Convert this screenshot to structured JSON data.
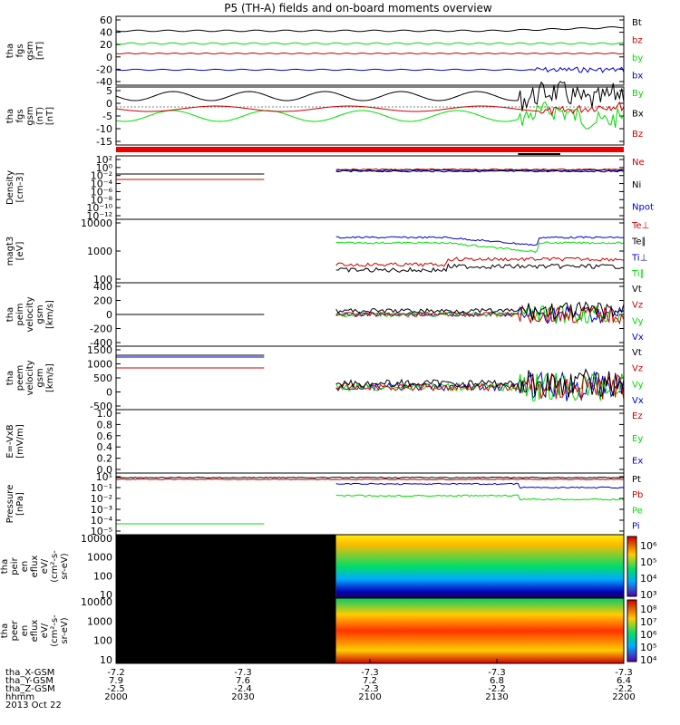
{
  "title": "P5 (TH-A) fields and on-board moments overview",
  "panels": [
    {
      "id": "p1",
      "ylabel": [
        "tha",
        "fgs",
        "gsm",
        "[nT]"
      ],
      "yticks": [
        "60",
        "40",
        "20",
        "0",
        "-20",
        "-40"
      ],
      "legend": [
        {
          "label": "Bt",
          "color": "#000000"
        },
        {
          "label": "bz",
          "color": "#cc0000"
        },
        {
          "label": "by",
          "color": "#00dd00"
        },
        {
          "label": "bx",
          "color": "#0000cc"
        }
      ]
    },
    {
      "id": "p2",
      "ylabel": [
        "tha",
        "fgs",
        "gsm",
        "(nT)",
        "[nT]"
      ],
      "yticks": [
        "5",
        "0",
        "-5",
        "-10",
        "-15"
      ],
      "legend": [
        {
          "label": "By",
          "color": "#00dd00"
        },
        {
          "label": "Bx",
          "color": "#000000"
        },
        {
          "label": "Bz",
          "color": "#cc0000"
        }
      ]
    },
    {
      "id": "p4",
      "ylabel": [
        "Density",
        "[cm-3]"
      ],
      "yticks": [
        "10²",
        "10⁰",
        "10⁻²",
        "10⁻⁴",
        "10⁻⁶",
        "10⁻⁸",
        "10⁻¹⁰",
        "10⁻¹²"
      ],
      "legend": [
        {
          "label": "Ne",
          "color": "#cc0000"
        },
        {
          "label": "Ni",
          "color": "#000000"
        },
        {
          "label": "Npot",
          "color": "#0000cc"
        }
      ]
    },
    {
      "id": "p5",
      "ylabel": [
        "magt3",
        "[eV]"
      ],
      "yticks": [
        "10000",
        "1000",
        "100"
      ],
      "legend": [
        {
          "label": "Te⊥",
          "color": "#cc0000"
        },
        {
          "label": "Te∥",
          "color": "#000000"
        },
        {
          "label": "Ti⊥",
          "color": "#0000cc"
        },
        {
          "label": "Ti∥",
          "color": "#00dd00"
        }
      ]
    },
    {
      "id": "p6",
      "ylabel": [
        "tha",
        "peim",
        "velocity",
        "gsm",
        "[km/s]"
      ],
      "yticks": [
        "400",
        "200",
        "0",
        "-200",
        "-400"
      ],
      "legend": [
        {
          "label": "Vt",
          "color": "#000000"
        },
        {
          "label": "Vz",
          "color": "#cc0000"
        },
        {
          "label": "Vy",
          "color": "#00dd00"
        },
        {
          "label": "Vx",
          "color": "#0000cc"
        }
      ]
    },
    {
      "id": "p7",
      "ylabel": [
        "tha",
        "peem",
        "velocity",
        "gsm",
        "[km/s]"
      ],
      "yticks": [
        "1500",
        "1000",
        "500",
        "0",
        "-500"
      ],
      "legend": [
        {
          "label": "Vt",
          "color": "#000000"
        },
        {
          "label": "Vz",
          "color": "#cc0000"
        },
        {
          "label": "Vy",
          "color": "#00dd00"
        },
        {
          "label": "Vx",
          "color": "#0000cc"
        }
      ]
    },
    {
      "id": "p8",
      "ylabel": [
        "E=-VxB",
        "[mV/m]"
      ],
      "yticks": [
        "1.0",
        "0.8",
        "0.6",
        "0.4",
        "0.2",
        "0.0"
      ],
      "legend": [
        {
          "label": "Ez",
          "color": "#cc0000"
        },
        {
          "label": "Ey",
          "color": "#00dd00"
        },
        {
          "label": "Ex",
          "color": "#0000cc"
        }
      ]
    },
    {
      "id": "p9",
      "ylabel": [
        "Pressure",
        "[nPa]"
      ],
      "yticks": [
        "10¹",
        "10⁻¹",
        "10⁻²",
        "10⁻³",
        "10⁻⁴",
        "10⁻⁵"
      ],
      "legend": [
        {
          "label": "Pt",
          "color": "#000000"
        },
        {
          "label": "Pb",
          "color": "#cc0000"
        },
        {
          "label": "Pe",
          "color": "#00dd00"
        },
        {
          "label": "Pi",
          "color": "#0000cc"
        }
      ]
    },
    {
      "id": "p10",
      "ylabel": [
        "tha",
        "peir",
        "en",
        "eflux",
        "eV/",
        "(cm²-s-",
        "sr-eV)"
      ],
      "yticks": [
        "10000",
        "1000",
        "100",
        "10"
      ],
      "colorbar": [
        "10⁶",
        "10⁵",
        "10⁴",
        "10³"
      ]
    },
    {
      "id": "p11",
      "ylabel": [
        "tha",
        "peer",
        "en",
        "eflux",
        "eV/",
        "(cm²-s-",
        "sr-eV)"
      ],
      "yticks": [
        "10000",
        "1000",
        "100",
        "10"
      ],
      "colorbar": [
        "10⁸",
        "10⁷",
        "10⁶",
        "10⁵",
        "10⁴"
      ]
    }
  ],
  "bottom_axis": {
    "row_labels": [
      "tha_X-GSM",
      "tha_Y-GSM",
      "tha_Z-GSM",
      "hhmm",
      "2013 Oct 22"
    ],
    "columns": [
      {
        "x": "-7.2",
        "y": "7.9",
        "z": "-2.5",
        "t": "2000"
      },
      {
        "x": "-7.3",
        "y": "7.6",
        "z": "-2.4",
        "t": "2030"
      },
      {
        "x": "-7.3",
        "y": "7.2",
        "z": "-2.3",
        "t": "2100"
      },
      {
        "x": "-7.3",
        "y": "6.8",
        "z": "-2.2",
        "t": "2130"
      },
      {
        "x": "-7.3",
        "y": "6.4",
        "z": "-2.2",
        "t": "2200"
      }
    ]
  },
  "chart_data": {
    "type": "line",
    "title": "P5 (TH-A) fields and on-board moments overview",
    "x_ticks": [
      "2000",
      "2030",
      "2100",
      "2130",
      "2200"
    ],
    "series": [
      {
        "name": "Bt",
        "values": [
          33,
          33,
          32,
          30,
          38
        ]
      },
      {
        "name": "bz",
        "values": [
          10,
          10,
          9,
          8,
          10
        ]
      },
      {
        "name": "by",
        "values": [
          22,
          22,
          20,
          18,
          22
        ]
      },
      {
        "name": "bx",
        "values": [
          -27,
          -26,
          -26,
          -25,
          -30
        ]
      }
    ]
  }
}
